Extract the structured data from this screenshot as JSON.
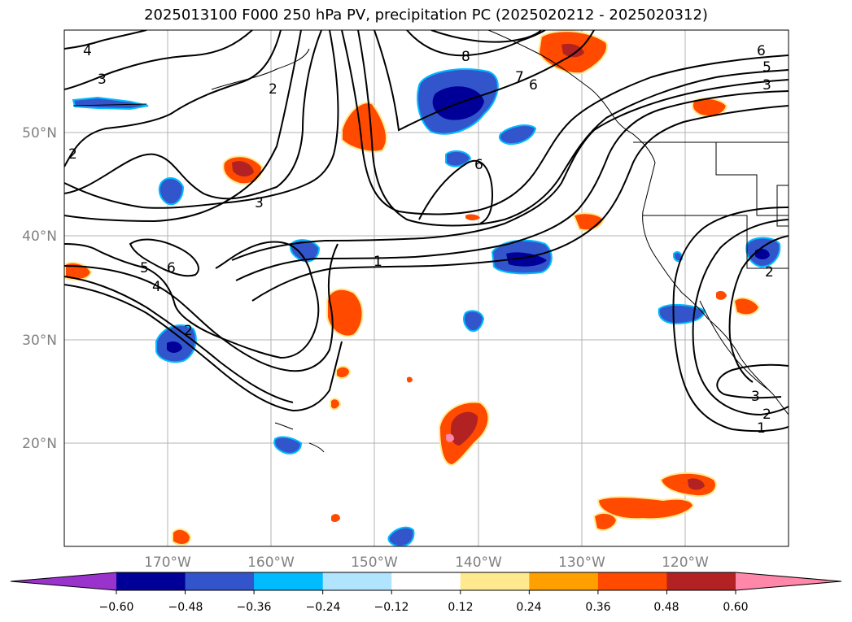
{
  "title": "2025013100 F000 250 hPa PV, precipitation PC (2025020212 - 2025020312)",
  "map": {
    "lon_range": [
      -180,
      -110
    ],
    "lat_range": [
      10,
      60
    ],
    "lon_ticks": [
      "170°W",
      "160°W",
      "150°W",
      "140°W",
      "130°W",
      "120°W"
    ],
    "lat_ticks": [
      "50°N",
      "40°N",
      "30°N",
      "20°N"
    ],
    "gridlines": true,
    "pv_contour_labels": [
      "4",
      "3",
      "2",
      "2",
      "8",
      "7",
      "6",
      "6",
      "5",
      "3",
      "3",
      "6",
      "1",
      "5",
      "6",
      "4",
      "2",
      "3",
      "2",
      "1",
      "2"
    ]
  },
  "colorbar": {
    "tick_labels": [
      "−0.60",
      "−0.48",
      "−0.36",
      "−0.24",
      "−0.12",
      "0.12",
      "0.24",
      "0.36",
      "0.48",
      "0.60"
    ],
    "colors": [
      "#9933cc",
      "#000099",
      "#3355cc",
      "#00bbff",
      "#b0e4ff",
      "#ffffff",
      "#ffe98f",
      "#ffa000",
      "#ff4a00",
      "#b22222",
      "#ff88aa"
    ],
    "extend": "both"
  }
}
